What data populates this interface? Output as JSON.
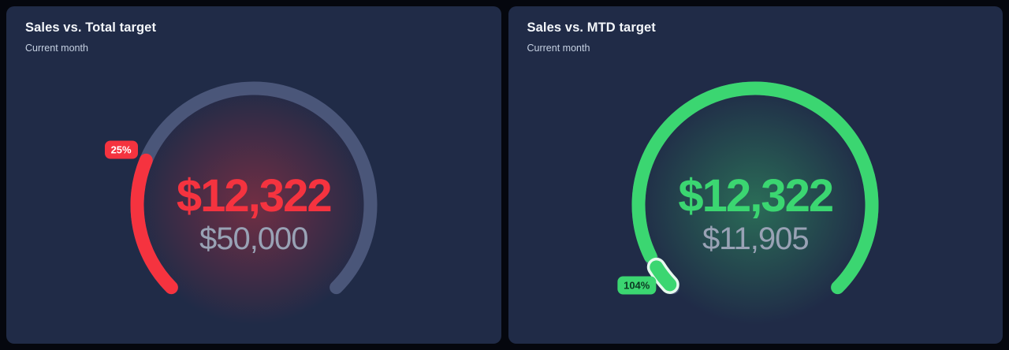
{
  "cards": [
    {
      "title": "Sales vs. Total target",
      "subtitle": "Current month",
      "value_label": "$12,322",
      "target_label": "$50,000",
      "badge_label": "25%",
      "colors": {
        "accent": "#f5333f",
        "track": "#4d597c",
        "glow": "#f5333f",
        "badge_bg": "#f5333f",
        "badge_text": "#ffffff",
        "value_text": "#f5333f",
        "target_text": "#99a2b5"
      }
    },
    {
      "title": "Sales vs. MTD target",
      "subtitle": "Current month",
      "value_label": "$12,322",
      "target_label": "$11,905",
      "badge_label": "104%",
      "colors": {
        "accent": "#3bd671",
        "track": "#4d597c",
        "glow": "#3bd671",
        "badge_bg": "#3bd671",
        "badge_text": "#0c3a23",
        "value_text": "#3bd671",
        "target_text": "#99a2b5"
      }
    }
  ],
  "chart_data": [
    {
      "type": "gauge",
      "title": "Sales vs. Total target",
      "subtitle": "Current month",
      "value": 12322,
      "target": 50000,
      "percent": 25,
      "value_label": "$12,322",
      "target_label": "$50,000",
      "percent_label": "25%",
      "arc_degrees": 270,
      "color": "#f5333f"
    },
    {
      "type": "gauge",
      "title": "Sales vs. MTD target",
      "subtitle": "Current month",
      "value": 12322,
      "target": 11905,
      "percent": 104,
      "value_label": "$12,322",
      "target_label": "$11,905",
      "percent_label": "104%",
      "arc_degrees": 270,
      "color": "#3bd671"
    }
  ]
}
